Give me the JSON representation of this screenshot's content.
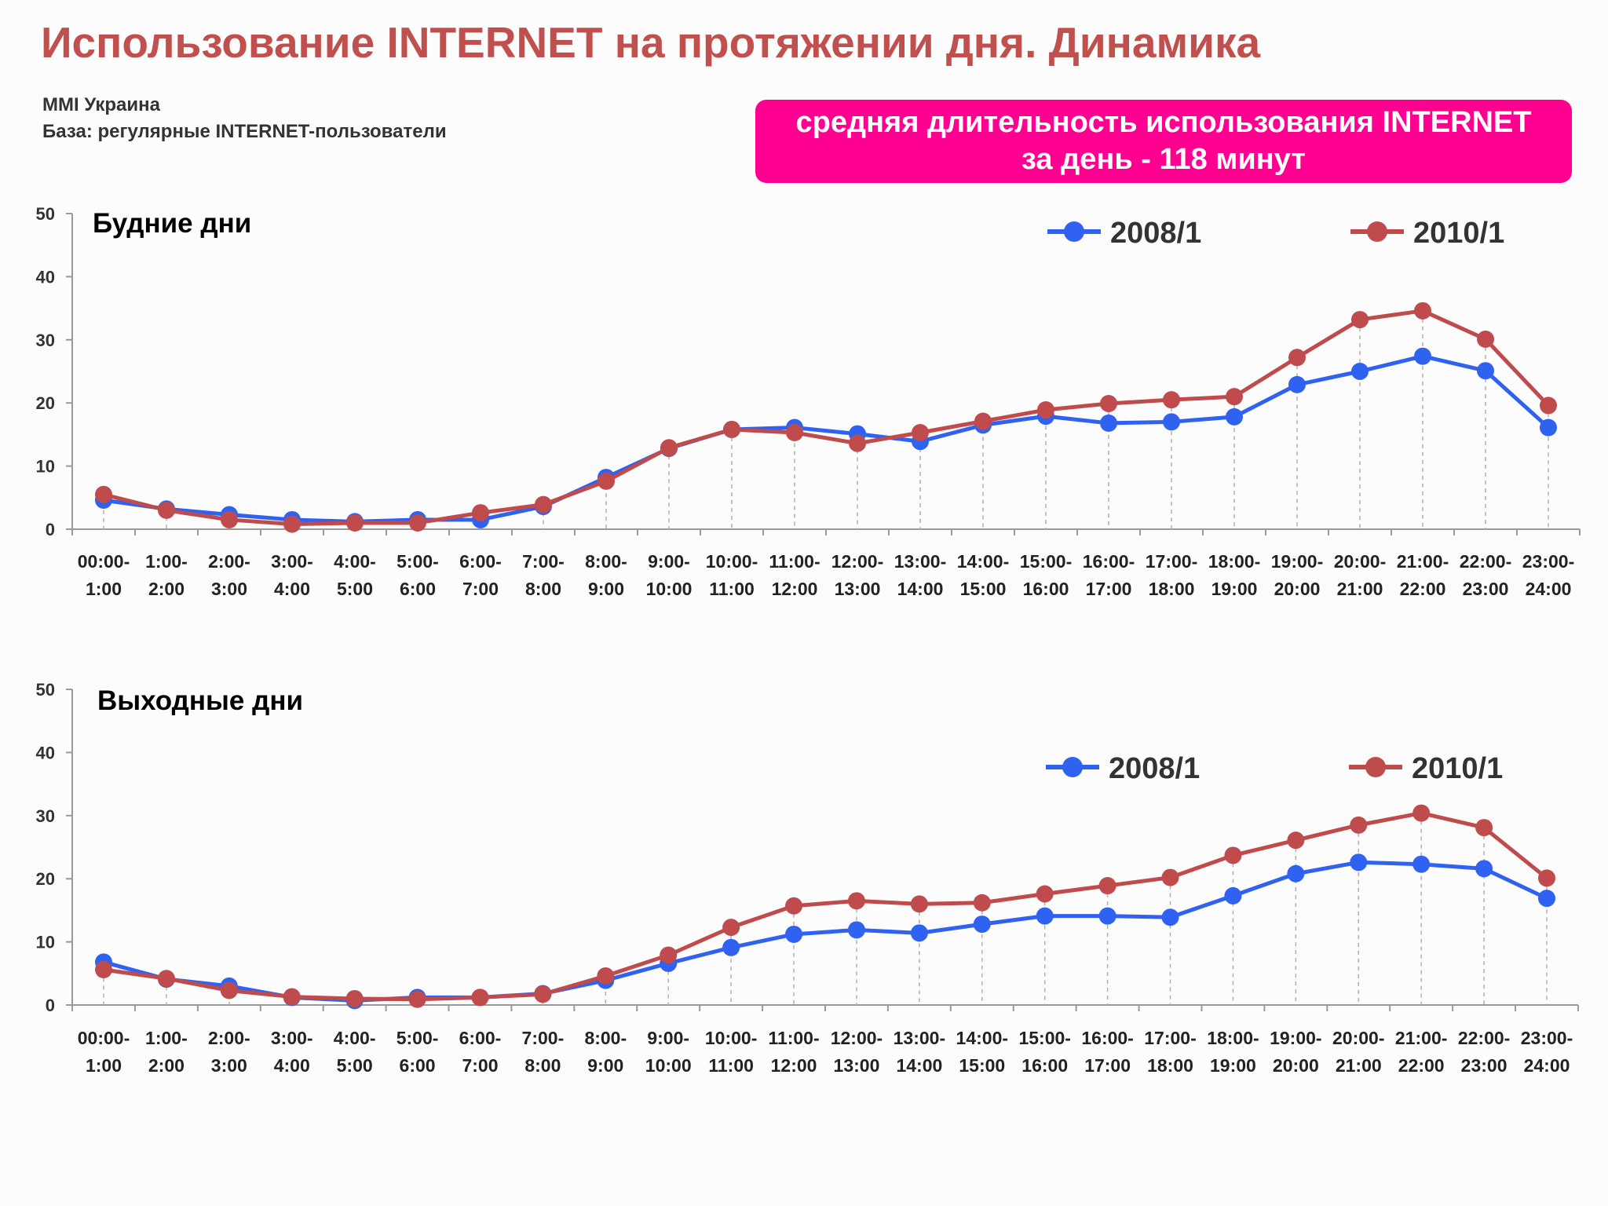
{
  "header": {
    "title": "Использование INTERNET на протяжении дня. Динамика",
    "source": "MMI Украина",
    "base": "База: регулярные INTERNET-пользователи"
  },
  "banner": {
    "line1": "средняя длительность использования INTERNET",
    "line2": "за день -  118 минут",
    "color": "#ff0090"
  },
  "colors": {
    "title": "#c0504d",
    "series_2008": "#2f62f0",
    "series_2010": "#bf4b4c",
    "axis": "#888888"
  },
  "chart_data": [
    {
      "type": "line",
      "title": "Будние дни",
      "ylim": [
        0,
        50
      ],
      "yticks": [
        0,
        10,
        20,
        30,
        40,
        50
      ],
      "legend_position": "top-right",
      "categories": [
        [
          "00:00-",
          "1:00"
        ],
        [
          "1:00-",
          "2:00"
        ],
        [
          "2:00-",
          "3:00"
        ],
        [
          "3:00-",
          "4:00"
        ],
        [
          "4:00-",
          "5:00"
        ],
        [
          "5:00-",
          "6:00"
        ],
        [
          "6:00-",
          "7:00"
        ],
        [
          "7:00-",
          "8:00"
        ],
        [
          "8:00-",
          "9:00"
        ],
        [
          "9:00-",
          "10:00"
        ],
        [
          "10:00-",
          "11:00"
        ],
        [
          "11:00-",
          "12:00"
        ],
        [
          "12:00-",
          "13:00"
        ],
        [
          "13:00-",
          "14:00"
        ],
        [
          "14:00-",
          "15:00"
        ],
        [
          "15:00-",
          "16:00"
        ],
        [
          "16:00-",
          "17:00"
        ],
        [
          "17:00-",
          "18:00"
        ],
        [
          "18:00-",
          "19:00"
        ],
        [
          "19:00-",
          "20:00"
        ],
        [
          "20:00-",
          "21:00"
        ],
        [
          "21:00-",
          "22:00"
        ],
        [
          "22:00-",
          "23:00"
        ],
        [
          "23:00-",
          "24:00"
        ]
      ],
      "series": [
        {
          "name": "2008/1",
          "color": "#2f62f0",
          "values": [
            4.6,
            3.2,
            2.3,
            1.5,
            1.2,
            1.5,
            1.5,
            3.6,
            8.2,
            12.8,
            15.8,
            16.1,
            15.1,
            13.9,
            16.5,
            17.9,
            16.8,
            17.0,
            17.8,
            22.9,
            25.0,
            27.4,
            25.1,
            16.1
          ]
        },
        {
          "name": "2010/1",
          "color": "#bf4b4c",
          "values": [
            5.5,
            3.0,
            1.5,
            0.8,
            1.0,
            1.0,
            2.6,
            3.9,
            7.6,
            12.9,
            15.8,
            15.3,
            13.6,
            15.3,
            17.1,
            18.9,
            19.9,
            20.5,
            21.0,
            27.2,
            33.2,
            34.6,
            30.1,
            19.6
          ]
        }
      ]
    },
    {
      "type": "line",
      "title": "Выходные дни",
      "ylim": [
        0,
        50
      ],
      "yticks": [
        0,
        10,
        20,
        30,
        40,
        50
      ],
      "legend_position": "top-right",
      "categories": [
        [
          "00:00-",
          "1:00"
        ],
        [
          "1:00-",
          "2:00"
        ],
        [
          "2:00-",
          "3:00"
        ],
        [
          "3:00-",
          "4:00"
        ],
        [
          "4:00-",
          "5:00"
        ],
        [
          "5:00-",
          "6:00"
        ],
        [
          "6:00-",
          "7:00"
        ],
        [
          "7:00-",
          "8:00"
        ],
        [
          "8:00-",
          "9:00"
        ],
        [
          "9:00-",
          "10:00"
        ],
        [
          "10:00-",
          "11:00"
        ],
        [
          "11:00-",
          "12:00"
        ],
        [
          "12:00-",
          "13:00"
        ],
        [
          "13:00-",
          "14:00"
        ],
        [
          "14:00-",
          "15:00"
        ],
        [
          "15:00-",
          "16:00"
        ],
        [
          "16:00-",
          "17:00"
        ],
        [
          "17:00-",
          "18:00"
        ],
        [
          "18:00-",
          "19:00"
        ],
        [
          "19:00-",
          "20:00"
        ],
        [
          "20:00-",
          "21:00"
        ],
        [
          "21:00-",
          "22:00"
        ],
        [
          "22:00-",
          "23:00"
        ],
        [
          "23:00-",
          "24:00"
        ]
      ],
      "series": [
        {
          "name": "2008/1",
          "color": "#2f62f0",
          "values": [
            6.8,
            4.1,
            3.0,
            1.2,
            0.7,
            1.2,
            1.2,
            1.8,
            3.9,
            6.6,
            9.1,
            11.2,
            11.9,
            11.4,
            12.8,
            14.1,
            14.1,
            13.9,
            17.3,
            20.8,
            22.6,
            22.3,
            21.6,
            16.9
          ]
        },
        {
          "name": "2010/1",
          "color": "#bf4b4c",
          "values": [
            5.6,
            4.2,
            2.3,
            1.3,
            1.0,
            0.9,
            1.2,
            1.7,
            4.6,
            7.9,
            12.3,
            15.7,
            16.5,
            16.0,
            16.2,
            17.6,
            18.9,
            20.2,
            23.7,
            26.1,
            28.5,
            30.4,
            28.1,
            20.1
          ]
        }
      ]
    }
  ]
}
